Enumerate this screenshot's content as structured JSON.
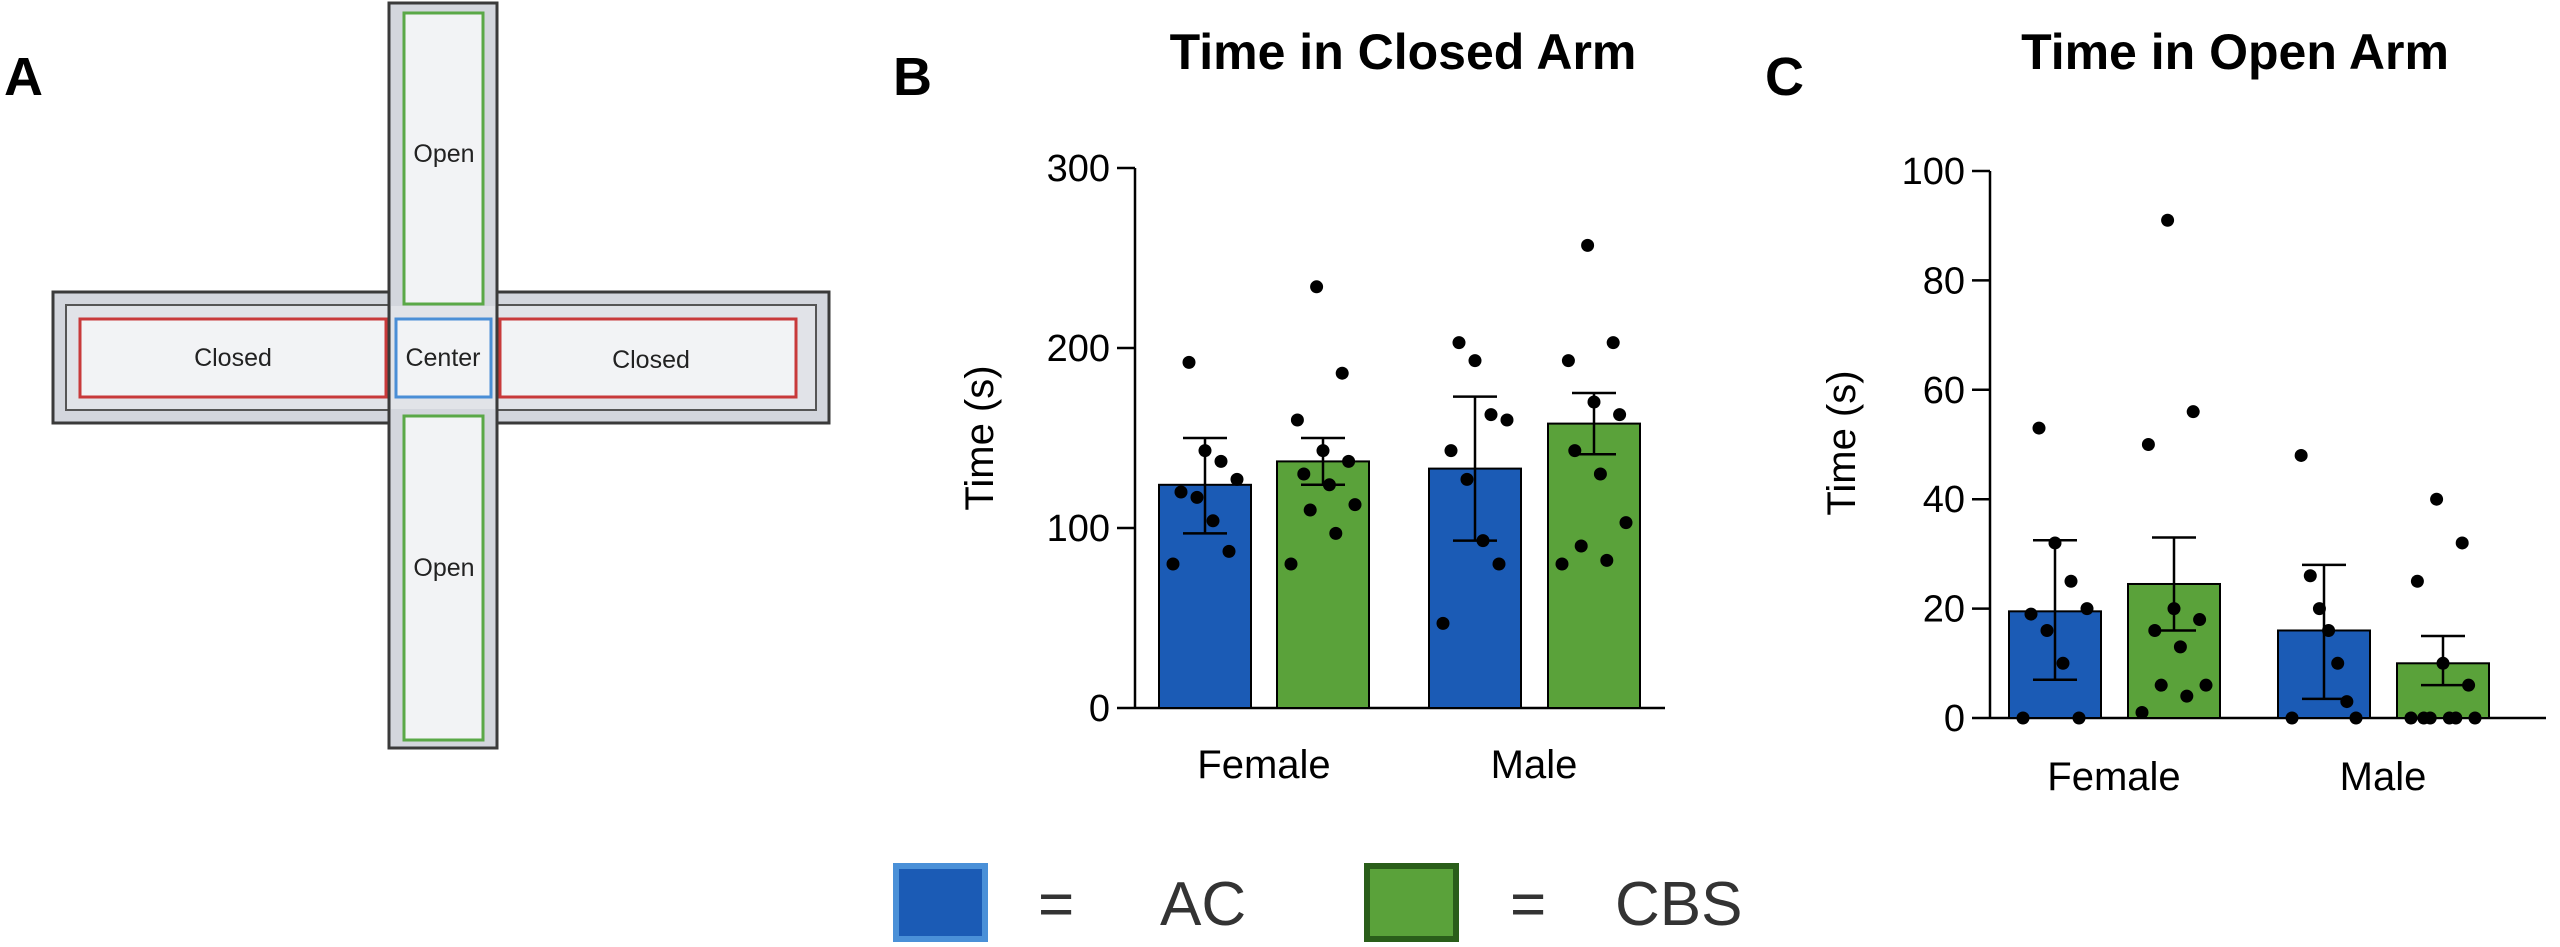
{
  "panels": {
    "a_letter": "A",
    "b_letter": "B",
    "c_letter": "C"
  },
  "maze": {
    "open_top": "Open",
    "open_bottom": "Open",
    "closed_left": "Closed",
    "closed_right": "Closed",
    "center": "Center",
    "colors": {
      "open_border": "#5aa847",
      "closed_border": "#c8393a",
      "center_border": "#4a8ed6",
      "fill": "#f2f3f5",
      "frame": "#3a3a3a"
    }
  },
  "legend": {
    "items": [
      {
        "symbol": "=",
        "label": "AC",
        "color": "#1b5bb5",
        "border": "#4a90d8"
      },
      {
        "symbol": "=",
        "label": "CBS",
        "color": "#5aa23a",
        "border": "#2a5e1a"
      }
    ]
  },
  "chart_data": [
    {
      "type": "bar",
      "title": "Time in Closed Arm",
      "xlabel": "",
      "ylabel": "Time (s)",
      "ylim": [
        0,
        300
      ],
      "yticks": [
        0,
        100,
        200,
        300
      ],
      "categories": [
        "Female",
        "Male"
      ],
      "series": [
        {
          "name": "AC",
          "color": "#1b5bb5",
          "values": [
            124,
            133
          ],
          "sem_low": [
            97,
            93
          ],
          "sem_high": [
            150,
            173
          ],
          "points": [
            [
              80,
              87,
              104,
              117,
              120,
              127,
              137,
              143,
              192
            ],
            [
              47,
              80,
              93,
              127,
              143,
              160,
              163,
              193,
              203
            ]
          ]
        },
        {
          "name": "CBS",
          "color": "#5aa23a",
          "values": [
            137,
            158
          ],
          "sem_low": [
            124,
            141
          ],
          "sem_high": [
            150,
            175
          ],
          "points": [
            [
              80,
              97,
              110,
              113,
              124,
              130,
              137,
              143,
              160,
              186,
              234
            ],
            [
              80,
              82,
              90,
              103,
              130,
              143,
              163,
              170,
              193,
              203,
              257
            ]
          ]
        }
      ]
    },
    {
      "type": "bar",
      "title": "Time in Open Arm",
      "xlabel": "",
      "ylabel": "Time (s)",
      "ylim": [
        0,
        100
      ],
      "yticks": [
        0,
        20,
        40,
        60,
        80,
        100
      ],
      "categories": [
        "Female",
        "Male"
      ],
      "series": [
        {
          "name": "AC",
          "color": "#1b5bb5",
          "values": [
            19.5,
            16
          ],
          "sem_low": [
            7,
            3.5
          ],
          "sem_high": [
            32.5,
            28
          ],
          "points": [
            [
              0,
              0,
              10,
              16,
              19,
              20,
              25,
              32,
              53
            ],
            [
              0,
              0,
              3,
              10,
              16,
              20,
              26,
              48
            ]
          ]
        },
        {
          "name": "CBS",
          "color": "#5aa23a",
          "values": [
            24.5,
            10
          ],
          "sem_low": [
            16,
            6
          ],
          "sem_high": [
            33,
            15
          ],
          "points": [
            [
              1,
              4,
              6,
              6,
              13,
              16,
              18,
              20,
              50,
              56,
              91
            ],
            [
              0,
              0,
              0,
              0,
              0,
              0,
              6,
              10,
              25,
              32,
              40
            ]
          ]
        }
      ]
    }
  ]
}
